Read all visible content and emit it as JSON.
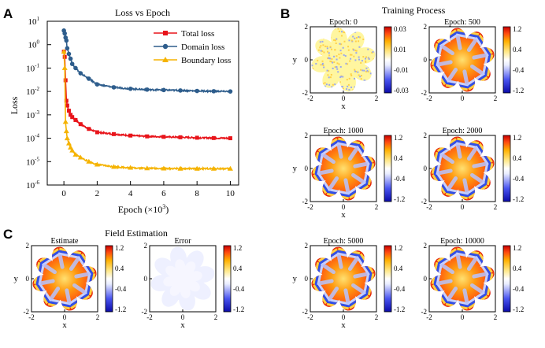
{
  "panels": {
    "a": "A",
    "b": "B",
    "c": "C"
  },
  "chart_data": [
    {
      "id": "loss",
      "type": "line",
      "title": "Loss vs Epoch",
      "xlabel": "Epoch (×10³)",
      "xlabel_main": "Epoch",
      "xlabel_unit": "(×10",
      "xlabel_exp": "3",
      "xlabel_close": ")",
      "ylabel": "Loss",
      "xlim": [
        -1,
        10.5
      ],
      "ylim_log10": [
        -6,
        1
      ],
      "y_scale": "log",
      "x_ticks": [
        "0",
        "2",
        "4",
        "6",
        "8",
        "10"
      ],
      "y_ticks": [
        "10",
        "10",
        "10",
        "10",
        "10",
        "10",
        "10",
        "10"
      ],
      "y_tick_exps": [
        "-6",
        "-5",
        "-4",
        "-3",
        "-2",
        "-1",
        "0",
        "1"
      ],
      "legend_position": "top-right",
      "x": [
        0,
        0.05,
        0.1,
        0.15,
        0.2,
        0.3,
        0.4,
        0.5,
        0.7,
        1.0,
        1.5,
        2.0,
        3.0,
        4.0,
        5.0,
        6.0,
        7.0,
        8.0,
        9.0,
        10.0
      ],
      "series": [
        {
          "name": "Total loss",
          "color": "#e8141a",
          "marker": "square",
          "values": [
            0.5,
            0.3,
            0.03,
            0.004,
            0.0025,
            0.0015,
            0.001,
            0.0008,
            0.0006,
            0.0004,
            0.00025,
            0.00018,
            0.00015,
            0.00013,
            0.00012,
            0.000115,
            0.00011,
            0.000105,
            0.000102,
            0.0001
          ]
        },
        {
          "name": "Domain loss",
          "color": "#2e5d8c",
          "marker": "star",
          "values": [
            4,
            3,
            2,
            1.5,
            0.7,
            0.4,
            0.25,
            0.15,
            0.1,
            0.06,
            0.035,
            0.02,
            0.015,
            0.013,
            0.012,
            0.0115,
            0.011,
            0.0105,
            0.0102,
            0.01
          ]
        },
        {
          "name": "Boundary loss",
          "color": "#f5b301",
          "marker": "triangle",
          "values": [
            0.5,
            0.1,
            0.0005,
            0.0002,
            0.0001,
            6e-05,
            4e-05,
            3e-05,
            2e-05,
            1.5e-05,
            1e-05,
            7.5e-06,
            6e-06,
            5.5e-06,
            5.2e-06,
            5.1e-06,
            5e-06,
            5e-06,
            5e-06,
            5e-06
          ]
        }
      ]
    },
    {
      "id": "training",
      "type": "heatmap",
      "title": "Training Process",
      "xlabel": "x",
      "ylabel": "y",
      "subplots": [
        {
          "title": "Epoch: 0",
          "cbar_ticks": [
            "0.03",
            "0.01",
            "-0.01",
            "-0.03"
          ],
          "pattern": "noise"
        },
        {
          "title": "Epoch: 500",
          "cbar_ticks": [
            "1.2",
            "0.4",
            "-0.4",
            "-1.2"
          ],
          "pattern": "field"
        },
        {
          "title": "Epoch: 1000",
          "cbar_ticks": [
            "1.2",
            "0.4",
            "-0.4",
            "-1.2"
          ],
          "pattern": "field"
        },
        {
          "title": "Epoch: 2000",
          "cbar_ticks": [
            "1.2",
            "0.4",
            "-0.4",
            "-1.2"
          ],
          "pattern": "field"
        },
        {
          "title": "Epoch: 5000",
          "cbar_ticks": [
            "1.2",
            "0.4",
            "-0.4",
            "-1.2"
          ],
          "pattern": "field"
        },
        {
          "title": "Epoch: 10000",
          "cbar_ticks": [
            "1.2",
            "0.4",
            "-0.4",
            "-1.2"
          ],
          "pattern": "field"
        }
      ]
    },
    {
      "id": "estimation",
      "type": "heatmap",
      "title": "Field Estimation",
      "xlabel": "x",
      "ylabel": "y",
      "subplots": [
        {
          "title": "Estimate",
          "cbar_ticks": [
            "1.2",
            "0.4",
            "-0.4",
            "-1.2"
          ],
          "pattern": "field"
        },
        {
          "title": "Error",
          "cbar_ticks": [
            "1.2",
            "0.4",
            "-0.4",
            "-1.2"
          ],
          "pattern": "error"
        }
      ]
    }
  ]
}
